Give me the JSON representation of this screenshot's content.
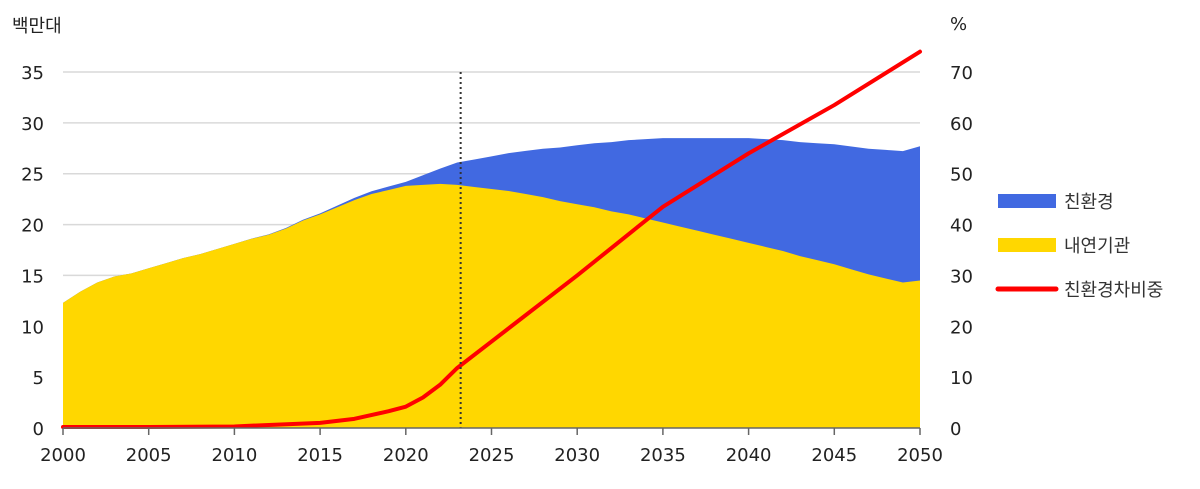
{
  "chart_data": {
    "type": "area",
    "left_unit": "백만대",
    "right_unit": "%",
    "x_ticks": [
      2000,
      2005,
      2010,
      2015,
      2020,
      2025,
      2030,
      2035,
      2040,
      2045,
      2050
    ],
    "y_left_ticks": [
      0,
      5,
      10,
      15,
      20,
      25,
      30,
      35
    ],
    "y_right_ticks": [
      0,
      10,
      20,
      30,
      40,
      50,
      60,
      70
    ],
    "xlim": [
      2000,
      2050
    ],
    "ylim_left": [
      0,
      35
    ],
    "ylim_right": [
      0,
      70
    ],
    "grid": "horizontal",
    "legend_placement": "right",
    "divider_year": 2023.2,
    "series": [
      {
        "name": "친환경",
        "type": "stacked-area",
        "axis": "left",
        "color": "#4169E1",
        "x": [
          2000,
          2005,
          2010,
          2015,
          2020,
          2022,
          2023,
          2025,
          2030,
          2035,
          2040,
          2045,
          2050
        ],
        "values": [
          0.0,
          0.0,
          0.0,
          0.1,
          0.4,
          1.5,
          2.2,
          3.2,
          5.8,
          8.3,
          10.3,
          11.8,
          13.2
        ]
      },
      {
        "name": "내연기관",
        "type": "stacked-area",
        "axis": "left",
        "color": "#FFD700",
        "x": [
          2000,
          2001,
          2002,
          2003,
          2004,
          2005,
          2006,
          2007,
          2008,
          2009,
          2010,
          2011,
          2012,
          2013,
          2014,
          2015,
          2016,
          2017,
          2018,
          2019,
          2020,
          2021,
          2022,
          2023,
          2024,
          2025,
          2026,
          2027,
          2028,
          2029,
          2030,
          2031,
          2032,
          2033,
          2034,
          2035,
          2036,
          2037,
          2038,
          2039,
          2040,
          2041,
          2042,
          2043,
          2044,
          2045,
          2046,
          2047,
          2048,
          2049,
          2050
        ],
        "values": [
          12.3,
          13.4,
          14.3,
          14.9,
          15.2,
          15.7,
          16.2,
          16.7,
          17.1,
          17.6,
          18.1,
          18.6,
          19.0,
          19.6,
          20.4,
          21.0,
          21.7,
          22.4,
          23.0,
          23.4,
          23.8,
          23.9,
          24.0,
          23.9,
          23.7,
          23.5,
          23.3,
          23.0,
          22.7,
          22.3,
          22.0,
          21.7,
          21.3,
          21.0,
          20.6,
          20.2,
          19.8,
          19.4,
          19.0,
          18.6,
          18.2,
          17.8,
          17.4,
          16.9,
          16.5,
          16.1,
          15.6,
          15.1,
          14.7,
          14.3,
          14.5
        ]
      },
      {
        "name": "친환경차비중",
        "type": "line",
        "axis": "right",
        "color": "#FF0000",
        "x": [
          2000,
          2005,
          2010,
          2012,
          2015,
          2017,
          2019,
          2020,
          2021,
          2022,
          2023,
          2025,
          2030,
          2035,
          2040,
          2045,
          2050
        ],
        "values": [
          0.2,
          0.2,
          0.3,
          0.6,
          1.0,
          1.8,
          3.3,
          4.2,
          6.0,
          8.5,
          11.8,
          17.0,
          30.0,
          43.5,
          54.0,
          63.5,
          74.0
        ]
      }
    ]
  }
}
